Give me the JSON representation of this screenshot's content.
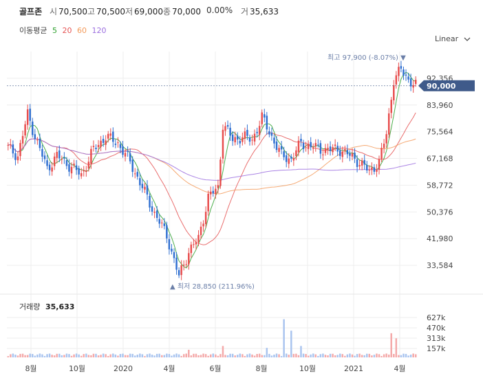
{
  "header": {
    "name": "골프존",
    "open_label": "시",
    "open": "70,500",
    "high_label": "고",
    "high": "70,500",
    "low_label": "저",
    "low": "69,000",
    "close_label": "종",
    "close": "70,000",
    "change": "0.00%",
    "volume_label": "거",
    "volume": "35,633"
  },
  "ma_legend": {
    "label": "이동평균",
    "items": [
      {
        "period": "5",
        "color": "#2ca02c"
      },
      {
        "period": "20",
        "color": "#e55353"
      },
      {
        "period": "60",
        "color": "#f39a5a"
      },
      {
        "period": "120",
        "color": "#9b6ddf"
      }
    ]
  },
  "scale_select": {
    "value": "Linear",
    "icon": "chevron-down-icon"
  },
  "colors": {
    "up": "#e84d4d",
    "down": "#2f6fd1",
    "accent": "#3f5a8a",
    "grid": "#eeeeee",
    "volume_up": "#f4a9a9",
    "volume_down": "#a9c4ef"
  },
  "chart_data": {
    "type": "candlestick",
    "y_ticks": [
      "92,356",
      "83,960",
      "75,564",
      "67,168",
      "58,772",
      "50,376",
      "41,980",
      "33,584"
    ],
    "y_tick_values": [
      92356,
      83960,
      75564,
      67168,
      58772,
      50376,
      41980,
      33584
    ],
    "ylim": [
      25188,
      100752
    ],
    "x_ticks": [
      "8월",
      "10월",
      "2020",
      "4월",
      "6월",
      "8월",
      "10월",
      "2021",
      "4월"
    ],
    "current_price_label": "90,000",
    "current_price": 90000,
    "max_annotation": "최고 97,900 (-8.07%)",
    "max_value": 97900,
    "min_annotation": "최저 28,850 (211.96%)",
    "min_value": 28850,
    "close_series_approx": [
      [
        0,
        70500
      ],
      [
        4,
        68000
      ],
      [
        8,
        81000
      ],
      [
        12,
        72000
      ],
      [
        16,
        64000
      ],
      [
        20,
        68000
      ],
      [
        25,
        65000
      ],
      [
        30,
        62000
      ],
      [
        35,
        70000
      ],
      [
        40,
        74000
      ],
      [
        45,
        72000
      ],
      [
        50,
        66000
      ],
      [
        55,
        58000
      ],
      [
        60,
        50000
      ],
      [
        65,
        43000
      ],
      [
        70,
        30000
      ],
      [
        74,
        38000
      ],
      [
        78,
        42000
      ],
      [
        82,
        55000
      ],
      [
        86,
        58000
      ],
      [
        88,
        78000
      ],
      [
        92,
        73000
      ],
      [
        96,
        74000
      ],
      [
        100,
        73000
      ],
      [
        104,
        80000
      ],
      [
        108,
        74000
      ],
      [
        112,
        68000
      ],
      [
        116,
        67000
      ],
      [
        120,
        72000
      ],
      [
        124,
        71000
      ],
      [
        128,
        70000
      ],
      [
        132,
        70000
      ],
      [
        136,
        70000
      ],
      [
        140,
        68000
      ],
      [
        144,
        66000
      ],
      [
        148,
        63000
      ],
      [
        152,
        66000
      ],
      [
        155,
        75000
      ],
      [
        158,
        92000
      ],
      [
        161,
        95000
      ],
      [
        164,
        92000
      ],
      [
        167,
        90000
      ]
    ],
    "volume_panel": {
      "label": "거래량",
      "value": "35,633",
      "y_ticks": [
        "627k",
        "470k",
        "313k",
        "157k"
      ]
    }
  }
}
